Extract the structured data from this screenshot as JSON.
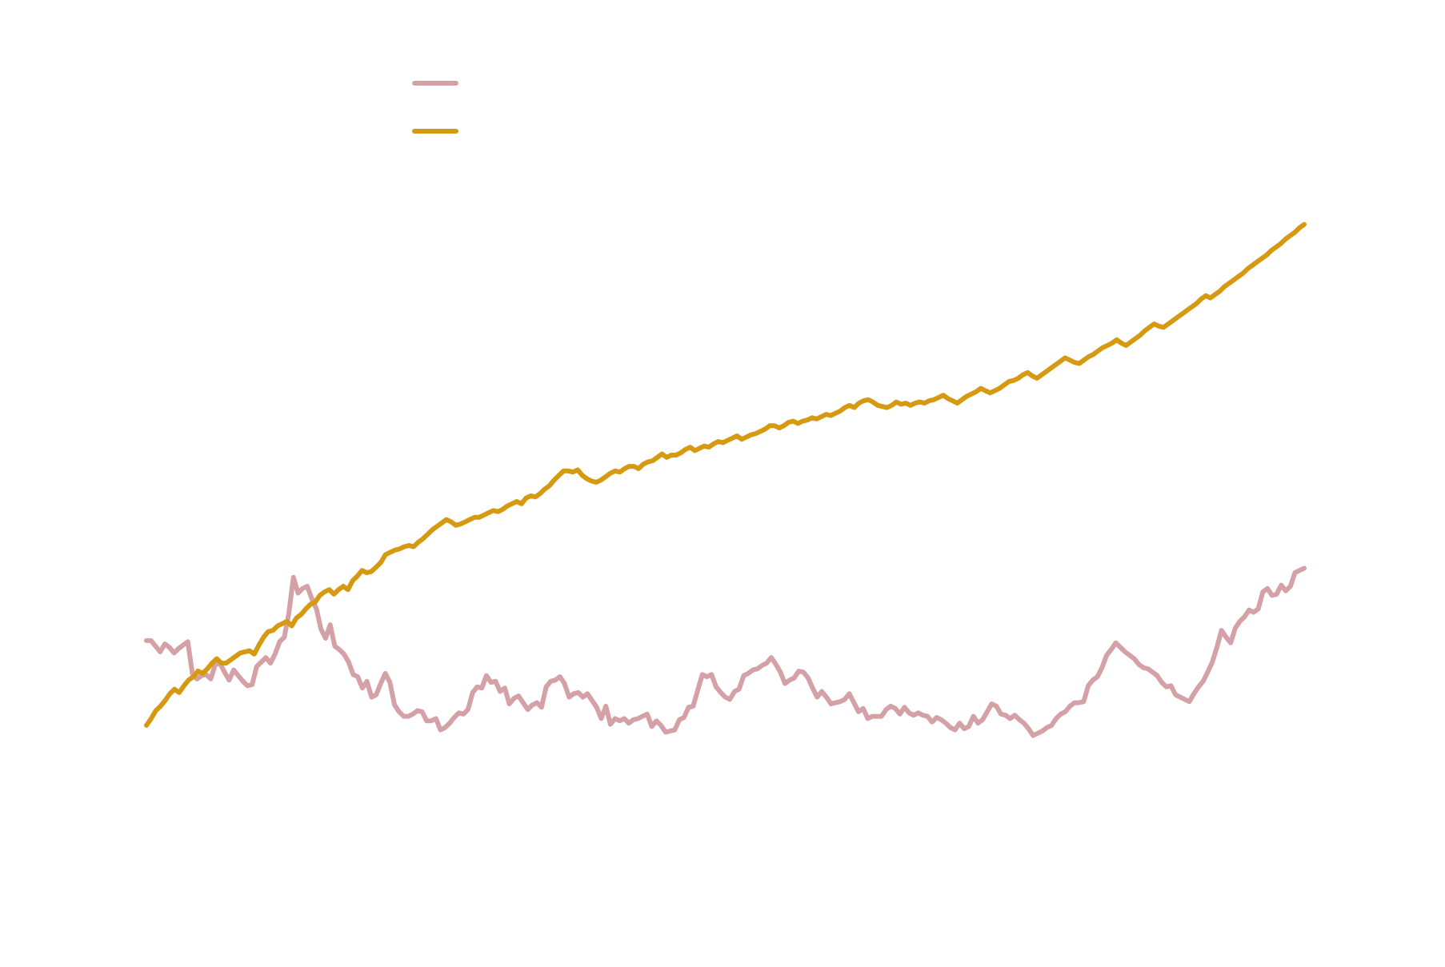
{
  "chart_data": {
    "type": "line",
    "title": "",
    "xlabel": "",
    "ylabel": "",
    "xlim": [
      0,
      250
    ],
    "grid": false,
    "legend_position": "top-left",
    "series": [
      {
        "color": "#d4a2a6",
        "values": [
          0.75,
          0.75,
          0.7,
          0.65,
          0.72,
          0.69,
          0.64,
          0.68,
          0.71,
          0.74,
          0.46,
          0.41,
          0.44,
          0.45,
          0.41,
          0.54,
          0.55,
          0.47,
          0.4,
          0.49,
          0.44,
          0.39,
          0.35,
          0.36,
          0.52,
          0.56,
          0.6,
          0.55,
          0.63,
          0.74,
          0.78,
          0.99,
          1.31,
          1.17,
          1.21,
          1.23,
          1.12,
          1.03,
          0.85,
          0.77,
          0.89,
          0.7,
          0.67,
          0.63,
          0.56,
          0.45,
          0.43,
          0.33,
          0.39,
          0.25,
          0.27,
          0.37,
          0.46,
          0.38,
          0.18,
          0.12,
          0.08,
          0.08,
          0.1,
          0.13,
          0.12,
          0.04,
          0.04,
          0.06,
          -0.04,
          -0.02,
          0.02,
          0.07,
          0.11,
          0.1,
          0.14,
          0.29,
          0.34,
          0.33,
          0.44,
          0.38,
          0.39,
          0.3,
          0.33,
          0.19,
          0.24,
          0.26,
          0.2,
          0.14,
          0.18,
          0.2,
          0.16,
          0.34,
          0.39,
          0.4,
          0.43,
          0.37,
          0.25,
          0.28,
          0.29,
          0.25,
          0.28,
          0.22,
          0.16,
          0.06,
          0.17,
          0.01,
          0.06,
          0.04,
          0.06,
          0.02,
          0.05,
          0.06,
          0.08,
          0.1,
          -0.01,
          0.04,
          0.0,
          -0.06,
          -0.05,
          -0.04,
          0.05,
          0.07,
          0.16,
          0.17,
          0.31,
          0.45,
          0.43,
          0.45,
          0.34,
          0.29,
          0.25,
          0.23,
          0.3,
          0.32,
          0.44,
          0.46,
          0.49,
          0.5,
          0.53,
          0.55,
          0.6,
          0.54,
          0.47,
          0.37,
          0.4,
          0.42,
          0.48,
          0.47,
          0.42,
          0.33,
          0.25,
          0.3,
          0.25,
          0.19,
          0.2,
          0.21,
          0.23,
          0.28,
          0.2,
          0.12,
          0.15,
          0.06,
          0.08,
          0.08,
          0.08,
          0.14,
          0.17,
          0.15,
          0.1,
          0.16,
          0.11,
          0.09,
          0.11,
          0.09,
          0.08,
          0.03,
          0.07,
          0.05,
          0.02,
          -0.02,
          -0.04,
          0.02,
          -0.03,
          -0.01,
          0.08,
          0.02,
          0.05,
          0.12,
          0.19,
          0.17,
          0.1,
          0.09,
          0.06,
          0.09,
          0.05,
          0.02,
          -0.03,
          -0.09,
          -0.07,
          -0.05,
          -0.02,
          0.0,
          0.06,
          0.1,
          0.12,
          0.17,
          0.2,
          0.2,
          0.21,
          0.35,
          0.4,
          0.43,
          0.51,
          0.62,
          0.67,
          0.73,
          0.69,
          0.65,
          0.62,
          0.59,
          0.54,
          0.51,
          0.5,
          0.47,
          0.44,
          0.38,
          0.34,
          0.35,
          0.27,
          0.25,
          0.23,
          0.21,
          0.28,
          0.34,
          0.39,
          0.47,
          0.56,
          0.69,
          0.84,
          0.78,
          0.73,
          0.86,
          0.92,
          0.96,
          1.02,
          1.0,
          1.03,
          1.18,
          1.21,
          1.15,
          1.16,
          1.24,
          1.19,
          1.23,
          1.35,
          1.37,
          1.39
        ]
      },
      {
        "color": "#d59a11",
        "values": [
          0.0,
          0.06,
          0.13,
          0.17,
          0.22,
          0.28,
          0.32,
          0.29,
          0.35,
          0.4,
          0.43,
          0.48,
          0.46,
          0.5,
          0.55,
          0.59,
          0.55,
          0.55,
          0.58,
          0.61,
          0.64,
          0.65,
          0.66,
          0.63,
          0.71,
          0.78,
          0.83,
          0.84,
          0.88,
          0.9,
          0.92,
          0.88,
          0.95,
          0.98,
          1.03,
          1.07,
          1.09,
          1.15,
          1.18,
          1.2,
          1.16,
          1.2,
          1.23,
          1.2,
          1.28,
          1.32,
          1.37,
          1.35,
          1.36,
          1.4,
          1.44,
          1.51,
          1.53,
          1.55,
          1.56,
          1.58,
          1.59,
          1.58,
          1.62,
          1.65,
          1.69,
          1.73,
          1.76,
          1.79,
          1.82,
          1.8,
          1.77,
          1.78,
          1.8,
          1.82,
          1.84,
          1.84,
          1.86,
          1.88,
          1.9,
          1.89,
          1.91,
          1.94,
          1.96,
          1.98,
          1.96,
          2.01,
          2.03,
          2.02,
          2.05,
          2.09,
          2.12,
          2.17,
          2.21,
          2.25,
          2.25,
          2.24,
          2.26,
          2.21,
          2.18,
          2.16,
          2.15,
          2.17,
          2.2,
          2.23,
          2.25,
          2.24,
          2.27,
          2.29,
          2.29,
          2.27,
          2.31,
          2.33,
          2.34,
          2.37,
          2.4,
          2.37,
          2.39,
          2.39,
          2.41,
          2.44,
          2.46,
          2.43,
          2.45,
          2.47,
          2.46,
          2.49,
          2.51,
          2.5,
          2.52,
          2.54,
          2.56,
          2.53,
          2.55,
          2.57,
          2.58,
          2.6,
          2.62,
          2.65,
          2.65,
          2.63,
          2.65,
          2.68,
          2.69,
          2.67,
          2.69,
          2.7,
          2.72,
          2.71,
          2.73,
          2.75,
          2.74,
          2.76,
          2.78,
          2.81,
          2.83,
          2.81,
          2.85,
          2.87,
          2.88,
          2.86,
          2.83,
          2.82,
          2.81,
          2.83,
          2.86,
          2.84,
          2.85,
          2.83,
          2.85,
          2.86,
          2.85,
          2.87,
          2.88,
          2.9,
          2.92,
          2.89,
          2.87,
          2.85,
          2.88,
          2.91,
          2.93,
          2.95,
          2.98,
          2.96,
          2.94,
          2.96,
          2.98,
          3.01,
          3.04,
          3.05,
          3.07,
          3.1,
          3.12,
          3.09,
          3.07,
          3.1,
          3.13,
          3.16,
          3.19,
          3.22,
          3.25,
          3.23,
          3.21,
          3.2,
          3.23,
          3.26,
          3.28,
          3.31,
          3.34,
          3.36,
          3.38,
          3.41,
          3.38,
          3.36,
          3.39,
          3.42,
          3.45,
          3.49,
          3.52,
          3.55,
          3.53,
          3.52,
          3.55,
          3.58,
          3.61,
          3.64,
          3.67,
          3.7,
          3.73,
          3.77,
          3.8,
          3.78,
          3.81,
          3.84,
          3.88,
          3.91,
          3.94,
          3.97,
          4.0,
          4.04,
          4.07,
          4.1,
          4.13,
          4.16,
          4.2,
          4.23,
          4.26,
          4.3,
          4.33,
          4.36,
          4.4,
          4.43
        ]
      }
    ]
  }
}
